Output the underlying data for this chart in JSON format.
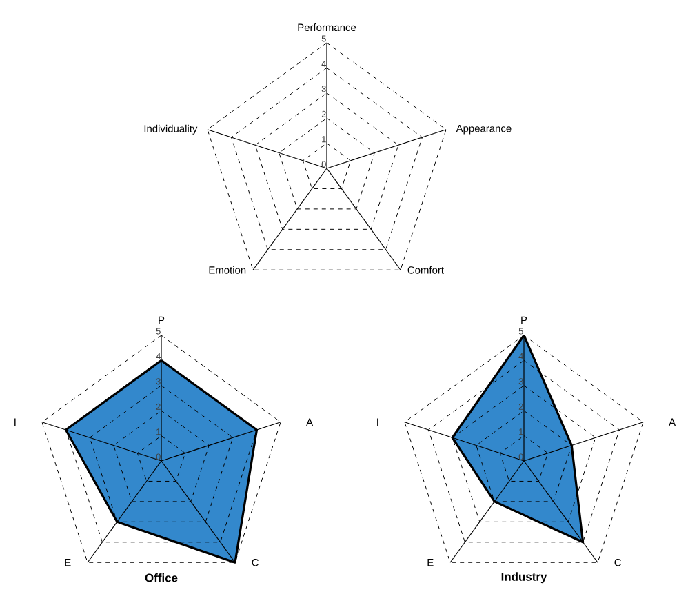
{
  "chart_data": [
    {
      "type": "radar",
      "categories": [
        "Performance",
        "Appearance",
        "Comfort",
        "Emotion",
        "Individuality"
      ],
      "ylim": [
        0,
        5
      ],
      "yticks": [
        0,
        1,
        2,
        3,
        4,
        5
      ],
      "grid": true
    },
    {
      "type": "radar",
      "title": "Office",
      "categories": [
        "P",
        "A",
        "C",
        "E",
        "I"
      ],
      "ylim": [
        0,
        5
      ],
      "yticks": [
        0,
        1,
        2,
        3,
        4,
        5
      ],
      "grid": true,
      "series": [
        {
          "color": "#3388cc",
          "values": [
            4,
            4,
            5,
            3,
            4
          ]
        }
      ]
    },
    {
      "type": "radar",
      "title": "Industry",
      "categories": [
        "P",
        "A",
        "C",
        "E",
        "I"
      ],
      "ylim": [
        0,
        5
      ],
      "yticks": [
        0,
        1,
        2,
        3,
        4,
        5
      ],
      "grid": true,
      "series": [
        {
          "color": "#3388cc",
          "values": [
            5,
            2,
            4,
            2,
            3
          ]
        }
      ]
    }
  ]
}
